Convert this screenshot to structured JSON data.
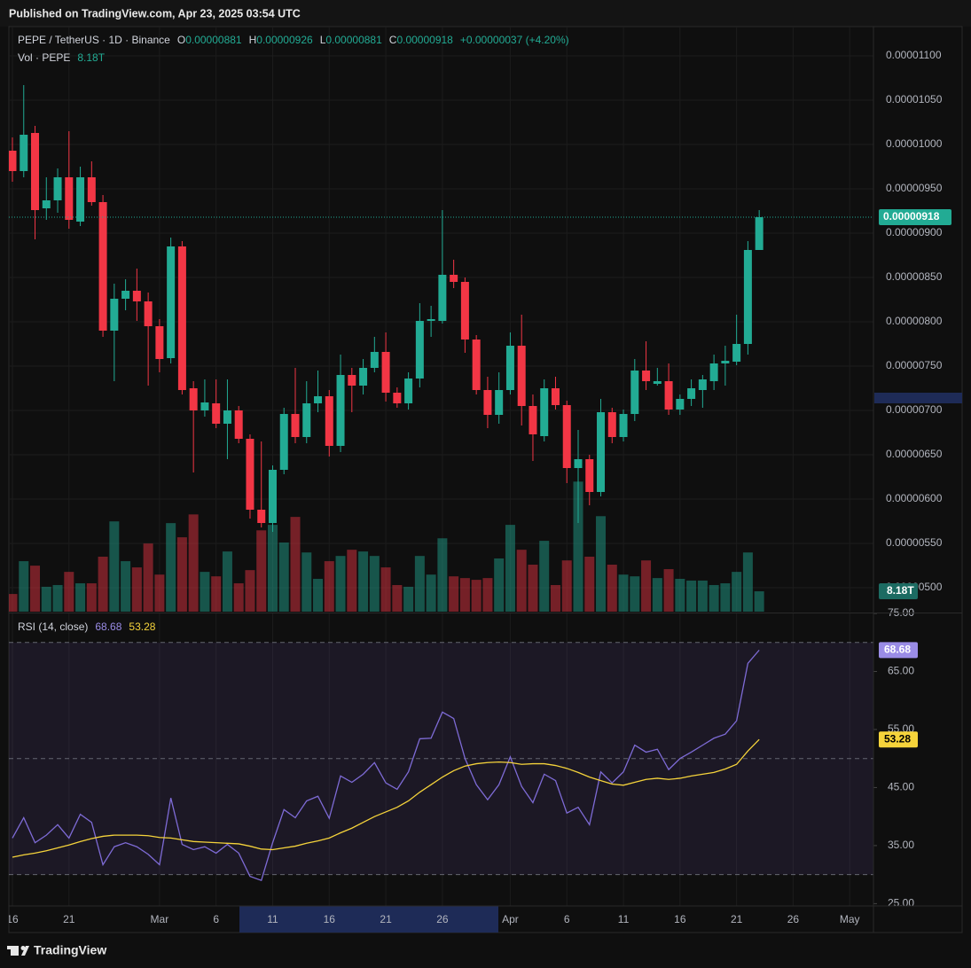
{
  "page_header": "Published on TradingView.com, Apr 23, 2025 03:54 UTC",
  "footer": "TradingView",
  "chart_data": [
    {
      "type": "candlestick",
      "title": "PEPE / TetherUS · 1D · Binance",
      "legend": [
        {
          "label": "O",
          "value": "0.00000881"
        },
        {
          "label": "H",
          "value": "0.00000926"
        },
        {
          "label": "L",
          "value": "0.00000881"
        },
        {
          "label": "C",
          "value": "0.00000918"
        }
      ],
      "change": "+0.00000037 (+4.20%)",
      "last_label": "0.00000918",
      "up_color": "#22ab94",
      "down_color": "#f23645",
      "categories": [
        "16",
        null,
        null,
        null,
        null,
        "21",
        null,
        null,
        null,
        null,
        null,
        null,
        null,
        "Mar",
        null,
        null,
        null,
        null,
        "6",
        null,
        null,
        null,
        null,
        "11",
        null,
        null,
        null,
        null,
        "16",
        null,
        null,
        null,
        null,
        "21",
        null,
        null,
        null,
        null,
        "26",
        null,
        null,
        null,
        null,
        null,
        "Apr",
        null,
        null,
        null,
        null,
        "6",
        null,
        null,
        null,
        null,
        "11",
        null,
        null,
        null,
        null,
        "16",
        null,
        null,
        null,
        null,
        "21",
        null,
        null,
        null,
        null,
        "26",
        null,
        null,
        null,
        null,
        "May",
        null,
        null
      ],
      "open": [
        9.93e-06,
        9.7e-06,
        1.013e-05,
        9.28e-06,
        9.37e-06,
        9.63e-06,
        9.13e-06,
        9.63e-06,
        9.35e-06,
        7.9e-06,
        8.26e-06,
        8.35e-06,
        8.23e-06,
        7.95e-06,
        7.59e-06,
        8.85e-06,
        7.25e-06,
        7e-06,
        7.08e-06,
        6.85e-06,
        7e-06,
        6.68e-06,
        5.88e-06,
        5.73e-06,
        6.33e-06,
        6.96e-06,
        6.7e-06,
        7.08e-06,
        7.16e-06,
        6.6e-06,
        7.4e-06,
        7.28e-06,
        7.48e-06,
        7.66e-06,
        7.2e-06,
        7.08e-06,
        7.36e-06,
        8.01e-06,
        8.01e-06,
        8.53e-06,
        8.45e-06,
        7.8e-06,
        7.23e-06,
        6.95e-06,
        7.23e-06,
        7.73e-06,
        7.05e-06,
        6.71e-06,
        7.25e-06,
        7.06e-06,
        6.35e-06,
        6.45e-06,
        6.08e-06,
        6.98e-06,
        6.7e-06,
        6.96e-06,
        7.45e-06,
        7.3e-06,
        7.33e-06,
        7.01e-06,
        7.13e-06,
        7.23e-06,
        7.33e-06,
        7.53e-06,
        7.55e-06,
        7.75e-06,
        8.81e-06,
        null,
        null,
        null,
        null,
        null,
        null,
        null,
        null,
        null,
        null
      ],
      "high": [
        1.008e-05,
        1.067e-05,
        1.021e-05,
        9.63e-06,
        9.73e-06,
        1.015e-05,
        9.75e-06,
        9.81e-06,
        9.43e-06,
        8.43e-06,
        8.48e-06,
        8.6e-06,
        8.33e-06,
        8.03e-06,
        8.95e-06,
        8.91e-06,
        7.33e-06,
        7.35e-06,
        7.35e-06,
        7.35e-06,
        7.05e-06,
        6.73e-06,
        6.65e-06,
        6.38e-06,
        7.03e-06,
        7.48e-06,
        7.33e-06,
        7.45e-06,
        7.23e-06,
        7.63e-06,
        7.48e-06,
        7.58e-06,
        7.83e-06,
        7.88e-06,
        7.26e-06,
        7.43e-06,
        8.21e-06,
        8.18e-06,
        9.26e-06,
        8.7e-06,
        8.5e-06,
        7.85e-06,
        7.38e-06,
        7.43e-06,
        7.88e-06,
        8.08e-06,
        7.18e-06,
        7.35e-06,
        7.38e-06,
        7.11e-06,
        6.78e-06,
        6.5e-06,
        7.13e-06,
        7.03e-06,
        7.01e-06,
        7.58e-06,
        7.78e-06,
        7.48e-06,
        7.53e-06,
        7.18e-06,
        7.35e-06,
        7.4e-06,
        7.63e-06,
        7.73e-06,
        8.08e-06,
        8.91e-06,
        9.26e-06,
        null,
        null,
        null,
        null,
        null,
        null,
        null,
        null,
        null,
        null
      ],
      "low": [
        9.58e-06,
        9.63e-06,
        8.93e-06,
        9.15e-06,
        9.23e-06,
        9.05e-06,
        9.08e-06,
        9.31e-06,
        7.83e-06,
        7.33e-06,
        8.13e-06,
        8.01e-06,
        7.28e-06,
        7.43e-06,
        7.53e-06,
        7.18e-06,
        6.3e-06,
        6.93e-06,
        6.8e-06,
        6.45e-06,
        6.63e-06,
        5.78e-06,
        5.68e-06,
        5.63e-06,
        6.28e-06,
        6.63e-06,
        6.63e-06,
        6.98e-06,
        6.48e-06,
        6.53e-06,
        6.98e-06,
        7.18e-06,
        7.43e-06,
        7.1e-06,
        7.03e-06,
        7.01e-06,
        7.26e-06,
        7.83e-06,
        7.98e-06,
        8.38e-06,
        7.65e-06,
        7.18e-06,
        6.8e-06,
        6.85e-06,
        7.18e-06,
        6.83e-06,
        6.43e-06,
        6.65e-06,
        7.01e-06,
        6.18e-06,
        5.73e-06,
        5.93e-06,
        6.03e-06,
        6.63e-06,
        6.65e-06,
        6.88e-06,
        7.23e-06,
        7.28e-06,
        6.95e-06,
        6.95e-06,
        7.05e-06,
        7.03e-06,
        7.23e-06,
        7.28e-06,
        7.51e-06,
        7.63e-06,
        8.81e-06,
        null,
        null,
        null,
        null,
        null,
        null,
        null,
        null,
        null,
        null
      ],
      "close": [
        9.7e-06,
        1.011e-05,
        9.26e-06,
        9.37e-06,
        9.63e-06,
        9.15e-06,
        9.63e-06,
        9.35e-06,
        7.9e-06,
        8.26e-06,
        8.35e-06,
        8.23e-06,
        7.95e-06,
        7.58e-06,
        8.85e-06,
        7.23e-06,
        7e-06,
        7.09e-06,
        6.85e-06,
        7e-06,
        6.68e-06,
        5.88e-06,
        5.73e-06,
        6.33e-06,
        6.96e-06,
        6.7e-06,
        7.08e-06,
        7.16e-06,
        6.6e-06,
        7.4e-06,
        7.28e-06,
        7.48e-06,
        7.66e-06,
        7.2e-06,
        7.08e-06,
        7.36e-06,
        8.01e-06,
        8.03e-06,
        8.53e-06,
        8.45e-06,
        7.8e-06,
        7.23e-06,
        6.95e-06,
        7.23e-06,
        7.73e-06,
        7.05e-06,
        6.73e-06,
        7.25e-06,
        7.06e-06,
        6.35e-06,
        6.45e-06,
        6.08e-06,
        6.98e-06,
        6.7e-06,
        6.96e-06,
        7.45e-06,
        7.33e-06,
        7.33e-06,
        7.01e-06,
        7.13e-06,
        7.25e-06,
        7.35e-06,
        7.53e-06,
        7.56e-06,
        7.75e-06,
        8.81e-06,
        9.18e-06,
        null,
        null,
        null,
        null,
        null,
        null,
        null,
        null,
        null,
        null
      ],
      "ylim": [
        4.73e-06,
        1.133e-05
      ],
      "yticks": [
        {
          "value": 1.1e-05,
          "label": "0.00001100"
        },
        {
          "value": 1.05e-05,
          "label": "0.00001050"
        },
        {
          "value": 1e-05,
          "label": "0.00001000"
        },
        {
          "value": 9.5e-06,
          "label": "0.00000950"
        },
        {
          "value": 9e-06,
          "label": "0.00000900"
        },
        {
          "value": 8.5e-06,
          "label": "0.00000850"
        },
        {
          "value": 8e-06,
          "label": "0.00000800"
        },
        {
          "value": 7.5e-06,
          "label": "0.00000750"
        },
        {
          "value": 7e-06,
          "label": "0.00000700"
        },
        {
          "value": 6.5e-06,
          "label": "0.00000650"
        },
        {
          "value": 6e-06,
          "label": "0.00000600"
        },
        {
          "value": 5.5e-06,
          "label": "0.00000550"
        },
        {
          "value": 5e-06,
          "label": "0.00000500"
        }
      ],
      "grid": true
    },
    {
      "type": "bar",
      "title": "Vol · PEPE",
      "last_label": "8.18T",
      "values": [
        7.1,
        20.3,
        18.5,
        10.0,
        10.7,
        16.0,
        11.4,
        11.4,
        22.1,
        36.3,
        20.3,
        17.8,
        27.4,
        14.9,
        35.6,
        29.9,
        39.1,
        16.0,
        14.2,
        24.2,
        11.4,
        16.7,
        32.7,
        34.9,
        27.8,
        38.1,
        23.8,
        13.2,
        20.3,
        22.4,
        24.9,
        24.2,
        22.4,
        17.8,
        10.7,
        10.0,
        22.4,
        14.9,
        29.5,
        14.2,
        13.5,
        12.8,
        13.5,
        21.4,
        34.9,
        24.9,
        18.9,
        28.5,
        10.7,
        20.6,
        52.3,
        22.1,
        38.4,
        18.9,
        14.9,
        14.2,
        20.6,
        13.5,
        17.1,
        13.2,
        12.5,
        12.5,
        10.7,
        11.4,
        16.0,
        23.8,
        8.18,
        null,
        null,
        null,
        null,
        null,
        null,
        null,
        null,
        null,
        null
      ],
      "ylim": [
        0,
        80
      ]
    },
    {
      "type": "line",
      "title": "RSI (14, close)",
      "series": [
        {
          "color": "#7e6bd6",
          "last_label": "68.68",
          "values": [
            36.3,
            39.8,
            35.5,
            36.8,
            38.6,
            36.3,
            40.4,
            39.0,
            31.7,
            34.8,
            35.5,
            34.8,
            33.5,
            31.7,
            43.2,
            35.2,
            34.3,
            34.8,
            33.7,
            35.2,
            33.7,
            29.7,
            29.0,
            35.5,
            41.2,
            39.8,
            42.7,
            43.5,
            39.7,
            47.0,
            45.9,
            47.3,
            49.3,
            45.8,
            44.7,
            47.7,
            53.4,
            53.5,
            58.0,
            56.9,
            50.0,
            45.5,
            42.9,
            45.5,
            50.3,
            45.2,
            42.4,
            47.3,
            46.2,
            40.6,
            41.6,
            38.6,
            47.7,
            45.8,
            47.7,
            52.3,
            51.1,
            51.6,
            48.1,
            50.0,
            51.1,
            52.3,
            53.5,
            54.2,
            56.5,
            66.4,
            68.68,
            null,
            null,
            null,
            null,
            null,
            null,
            null,
            null,
            null,
            null
          ]
        },
        {
          "color": "#f5d33b",
          "last_label": "53.28",
          "values": [
            33.0,
            33.4,
            33.7,
            34.1,
            34.6,
            35.1,
            35.7,
            36.2,
            36.6,
            36.8,
            36.8,
            36.8,
            36.7,
            36.4,
            36.3,
            36.0,
            35.7,
            35.6,
            35.5,
            35.4,
            35.3,
            34.9,
            34.4,
            34.3,
            34.6,
            34.9,
            35.4,
            35.8,
            36.3,
            37.2,
            38.0,
            39.0,
            40.0,
            40.8,
            41.6,
            42.7,
            44.2,
            45.5,
            46.8,
            47.9,
            48.7,
            49.1,
            49.3,
            49.4,
            49.3,
            49.0,
            49.1,
            49.1,
            48.8,
            48.3,
            47.6,
            46.8,
            46.2,
            45.6,
            45.4,
            45.9,
            46.4,
            46.6,
            46.4,
            46.6,
            47.0,
            47.3,
            47.6,
            48.2,
            49.0,
            51.3,
            53.28,
            null,
            null,
            null,
            null,
            null,
            null,
            null,
            null,
            null,
            null
          ]
        }
      ],
      "levels": [
        70,
        50,
        30
      ],
      "ylim": [
        24.6,
        75
      ],
      "yticks": [
        {
          "value": 75,
          "label": "75.00"
        },
        {
          "value": 65,
          "label": "65.00"
        },
        {
          "value": 55,
          "label": "55.00"
        },
        {
          "value": 45,
          "label": "45.00"
        },
        {
          "value": 35,
          "label": "35.00"
        },
        {
          "value": 25,
          "label": "25.00"
        }
      ]
    }
  ]
}
